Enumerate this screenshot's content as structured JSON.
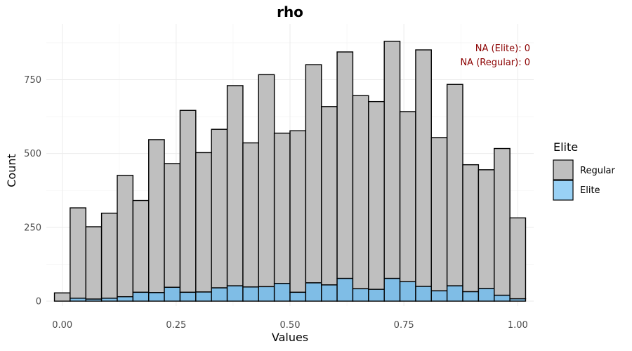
{
  "chart_data": {
    "type": "bar",
    "title": "rho",
    "xlabel": "Values",
    "ylabel": "Count",
    "xlim": [
      -0.035,
      1.035
    ],
    "ylim": [
      0,
      882
    ],
    "x_ticks": [
      0.0,
      0.25,
      0.5,
      0.75,
      1.0
    ],
    "x_tick_labels": [
      "0.00",
      "0.25",
      "0.50",
      "0.75",
      "1.00"
    ],
    "y_ticks": [
      0,
      250,
      500,
      750
    ],
    "y_tick_labels": [
      "0",
      "250",
      "500",
      "750"
    ],
    "grid": true,
    "bins": [
      [
        -0.0172,
        0.0172
      ],
      [
        0.0172,
        0.0517
      ],
      [
        0.0517,
        0.0862
      ],
      [
        0.0862,
        0.1207
      ],
      [
        0.1207,
        0.1552
      ],
      [
        0.1552,
        0.1897
      ],
      [
        0.1897,
        0.2241
      ],
      [
        0.2241,
        0.2586
      ],
      [
        0.2586,
        0.2931
      ],
      [
        0.2931,
        0.3276
      ],
      [
        0.3276,
        0.3621
      ],
      [
        0.3621,
        0.3966
      ],
      [
        0.3966,
        0.431
      ],
      [
        0.431,
        0.4655
      ],
      [
        0.4655,
        0.5
      ],
      [
        0.5,
        0.5345
      ],
      [
        0.5345,
        0.569
      ],
      [
        0.569,
        0.6034
      ],
      [
        0.6034,
        0.6379
      ],
      [
        0.6379,
        0.6724
      ],
      [
        0.6724,
        0.7069
      ],
      [
        0.7069,
        0.7414
      ],
      [
        0.7414,
        0.7759
      ],
      [
        0.7759,
        0.8103
      ],
      [
        0.8103,
        0.8448
      ],
      [
        0.8448,
        0.8793
      ],
      [
        0.8793,
        0.9138
      ],
      [
        0.9138,
        0.9483
      ],
      [
        0.9483,
        0.9828
      ],
      [
        0.9828,
        1.0172
      ]
    ],
    "series": [
      {
        "name": "Elite",
        "color": "#7fbde6",
        "values": [
          0,
          10,
          7,
          10,
          15,
          30,
          29,
          47,
          30,
          31,
          45,
          52,
          48,
          49,
          60,
          30,
          62,
          55,
          77,
          42,
          40,
          77,
          66,
          50,
          35,
          52,
          32,
          43,
          20,
          8
        ]
      },
      {
        "name": "Regular",
        "color": "#bfbfbf",
        "values": [
          28,
          306,
          245,
          288,
          411,
          311,
          518,
          419,
          616,
          472,
          537,
          678,
          488,
          718,
          509,
          547,
          739,
          604,
          767,
          654,
          636,
          803,
          576,
          801,
          519,
          682,
          430,
          402,
          497,
          274
        ]
      }
    ],
    "legend": {
      "title": "Elite",
      "placement": "right",
      "entries": [
        {
          "label": "Regular",
          "color": "#bfbfbf"
        },
        {
          "label": "Elite",
          "color": "#99d1f5"
        }
      ]
    },
    "annotations": [
      "NA (Elite): 0",
      "NA (Regular): 0"
    ],
    "annotation_color": "#8b0000"
  }
}
